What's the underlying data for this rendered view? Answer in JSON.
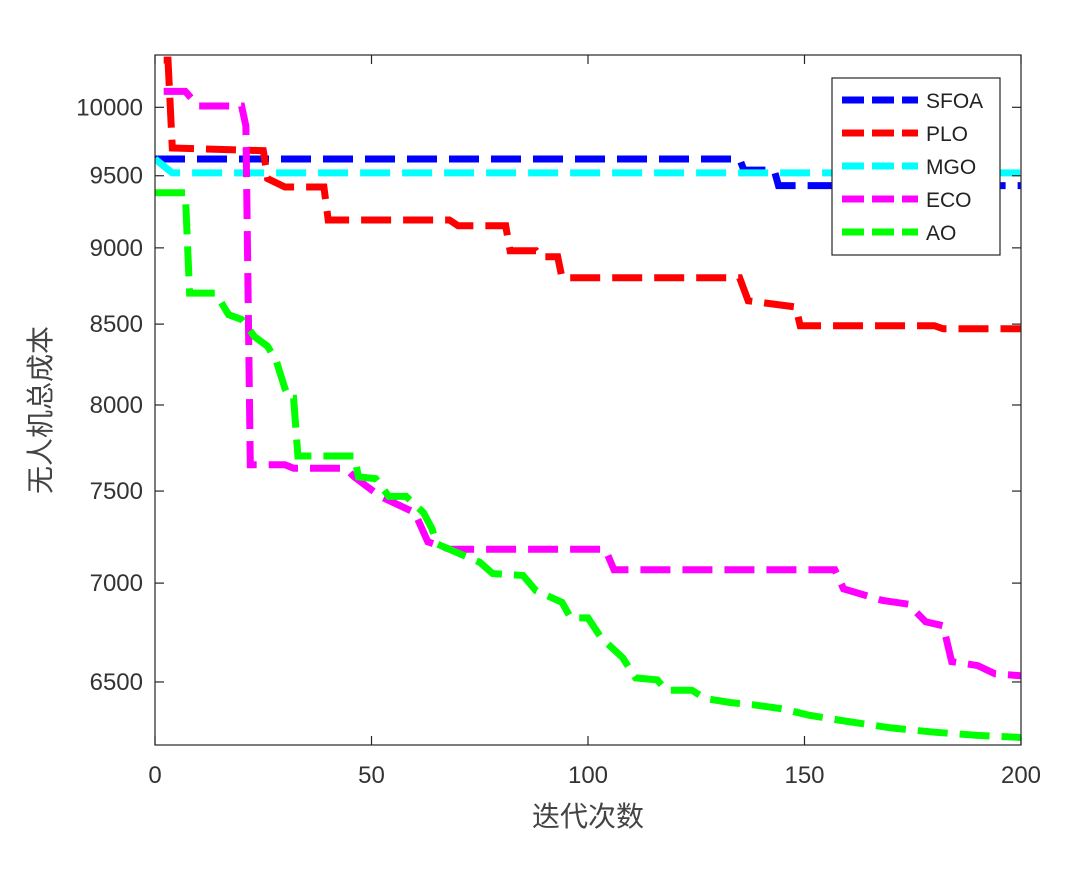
{
  "chart_data": {
    "type": "line",
    "xlabel": "迭代次数",
    "ylabel": "无人机总成本",
    "xlim": [
      0,
      200
    ],
    "ylim": [
      6200,
      10400
    ],
    "y_scale": "log",
    "grid": false,
    "legend_position": "top-right",
    "x_ticks": [
      "0",
      "50",
      "100",
      "150",
      "200"
    ],
    "y_ticks": [
      "6500",
      "7000",
      "7500",
      "8000",
      "8500",
      "9000",
      "9500",
      "10000"
    ],
    "series": [
      {
        "name": "SFOA",
        "color": "#0000ff",
        "dash": "dashed",
        "points": [
          [
            0,
            9620
          ],
          [
            135,
            9620
          ],
          [
            136,
            9540
          ],
          [
            143,
            9540
          ],
          [
            144,
            9430
          ],
          [
            200,
            9430
          ]
        ]
      },
      {
        "name": "PLO",
        "color": "#ff0000",
        "dash": "dashed",
        "points": [
          [
            2,
            10360
          ],
          [
            3,
            10360
          ],
          [
            4,
            9700
          ],
          [
            25,
            9680
          ],
          [
            26,
            9480
          ],
          [
            30,
            9420
          ],
          [
            39,
            9420
          ],
          [
            40,
            9190
          ],
          [
            68,
            9190
          ],
          [
            70,
            9150
          ],
          [
            81,
            9150
          ],
          [
            82,
            8980
          ],
          [
            88,
            8980
          ],
          [
            89,
            8940
          ],
          [
            93,
            8940
          ],
          [
            94,
            8800
          ],
          [
            135,
            8800
          ],
          [
            137,
            8650
          ],
          [
            148,
            8610
          ],
          [
            149,
            8490
          ],
          [
            180,
            8490
          ],
          [
            182,
            8470
          ],
          [
            200,
            8470
          ]
        ]
      },
      {
        "name": "MGO",
        "color": "#00ffff",
        "dash": "dashed",
        "points": [
          [
            0,
            9620
          ],
          [
            4,
            9520
          ],
          [
            200,
            9520
          ]
        ]
      },
      {
        "name": "ECO",
        "color": "#ff00ff",
        "dash": "dashed",
        "points": [
          [
            2,
            10120
          ],
          [
            7,
            10120
          ],
          [
            10,
            10010
          ],
          [
            20,
            10010
          ],
          [
            21,
            9860
          ],
          [
            22,
            7650
          ],
          [
            30,
            7650
          ],
          [
            32,
            7630
          ],
          [
            44,
            7630
          ],
          [
            46,
            7580
          ],
          [
            52,
            7470
          ],
          [
            60,
            7380
          ],
          [
            63,
            7220
          ],
          [
            68,
            7180
          ],
          [
            104,
            7180
          ],
          [
            106,
            7070
          ],
          [
            157,
            7070
          ],
          [
            159,
            6970
          ],
          [
            168,
            6910
          ],
          [
            174,
            6890
          ],
          [
            178,
            6800
          ],
          [
            182,
            6780
          ],
          [
            184,
            6600
          ],
          [
            190,
            6580
          ],
          [
            194,
            6540
          ],
          [
            200,
            6530
          ]
        ]
      },
      {
        "name": "AO",
        "color": "#00ff00",
        "dash": "dashed",
        "points": [
          [
            0,
            9380
          ],
          [
            7,
            9380
          ],
          [
            8,
            8700
          ],
          [
            14,
            8700
          ],
          [
            17,
            8560
          ],
          [
            20,
            8530
          ],
          [
            23,
            8420
          ],
          [
            26,
            8360
          ],
          [
            28,
            8270
          ],
          [
            30,
            8100
          ],
          [
            31,
            8040
          ],
          [
            32,
            8040
          ],
          [
            33,
            7700
          ],
          [
            46,
            7700
          ],
          [
            47,
            7580
          ],
          [
            51,
            7570
          ],
          [
            54,
            7470
          ],
          [
            58,
            7470
          ],
          [
            62,
            7380
          ],
          [
            64,
            7290
          ],
          [
            65,
            7210
          ],
          [
            70,
            7160
          ],
          [
            75,
            7110
          ],
          [
            78,
            7050
          ],
          [
            85,
            7040
          ],
          [
            88,
            6960
          ],
          [
            94,
            6900
          ],
          [
            96,
            6820
          ],
          [
            100,
            6820
          ],
          [
            103,
            6720
          ],
          [
            108,
            6620
          ],
          [
            111,
            6520
          ],
          [
            116,
            6510
          ],
          [
            118,
            6460
          ],
          [
            124,
            6460
          ],
          [
            127,
            6420
          ],
          [
            133,
            6400
          ],
          [
            138,
            6390
          ],
          [
            145,
            6370
          ],
          [
            151,
            6340
          ],
          [
            160,
            6310
          ],
          [
            170,
            6280
          ],
          [
            180,
            6260
          ],
          [
            190,
            6245
          ],
          [
            200,
            6235
          ]
        ]
      }
    ]
  }
}
